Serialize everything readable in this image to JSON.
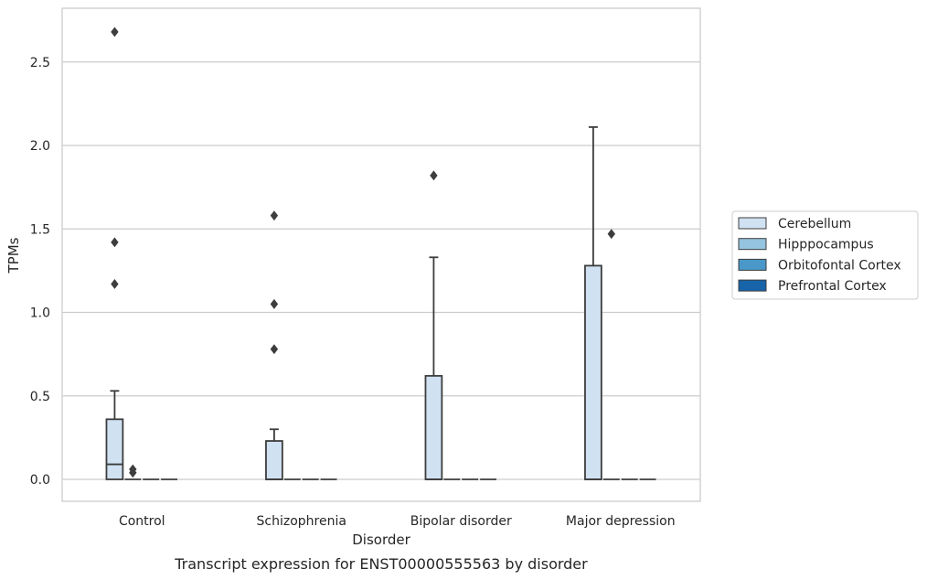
{
  "chart_data": {
    "type": "box",
    "caption": "Transcript expression for ENST00000555563 by disorder",
    "xlabel": "Disorder",
    "ylabel": "TPMs",
    "ylim": [
      -0.13,
      2.83
    ],
    "yticks": [
      0.0,
      0.5,
      1.0,
      1.5,
      2.0,
      2.5
    ],
    "ytick_labels": [
      "0.0",
      "0.5",
      "1.0",
      "1.5",
      "2.0",
      "2.5"
    ],
    "categories": [
      "Control",
      "Schizophrenia",
      "Bipolar disorder",
      "Major depression"
    ],
    "grid": "horizontal",
    "legend": {
      "placement": "right",
      "entries": [
        {
          "name": "Cerebellum",
          "color": "#d0e1f2"
        },
        {
          "name": "Hipppocampus",
          "color": "#94c4df"
        },
        {
          "name": "Orbitofontal Cortex",
          "color": "#4a98c9"
        },
        {
          "name": "Prefrontal Cortex",
          "color": "#1764ab"
        }
      ]
    },
    "series": [
      {
        "name": "Cerebellum",
        "color": "#d0e1f2",
        "boxes": [
          {
            "q1": 0.0,
            "median": 0.09,
            "q3": 0.36,
            "whislo": 0.0,
            "whishi": 0.53,
            "fliers": [
              1.17,
              1.42,
              2.68
            ]
          },
          {
            "q1": 0.0,
            "median": 0.0,
            "q3": 0.23,
            "whislo": 0.0,
            "whishi": 0.3,
            "fliers": [
              0.78,
              1.05,
              1.58
            ]
          },
          {
            "q1": 0.0,
            "median": 0.0,
            "q3": 0.62,
            "whislo": 0.0,
            "whishi": 1.33,
            "fliers": [
              1.82
            ]
          },
          {
            "q1": 0.0,
            "median": 0.0,
            "q3": 1.28,
            "whislo": 0.0,
            "whishi": 2.11,
            "fliers": []
          }
        ]
      },
      {
        "name": "Hipppocampus",
        "color": "#94c4df",
        "boxes": [
          {
            "q1": 0.0,
            "median": 0.0,
            "q3": 0.0,
            "whislo": 0.0,
            "whishi": 0.0,
            "fliers": [
              0.04,
              0.06
            ]
          },
          {
            "q1": 0.0,
            "median": 0.0,
            "q3": 0.0,
            "whislo": 0.0,
            "whishi": 0.0,
            "fliers": []
          },
          {
            "q1": 0.0,
            "median": 0.0,
            "q3": 0.0,
            "whislo": 0.0,
            "whishi": 0.0,
            "fliers": []
          },
          {
            "q1": 0.0,
            "median": 0.0,
            "q3": 0.0,
            "whislo": 0.0,
            "whishi": 0.0,
            "fliers": [
              1.47
            ]
          }
        ]
      },
      {
        "name": "Orbitofontal Cortex",
        "color": "#4a98c9",
        "boxes": [
          {
            "q1": 0.0,
            "median": 0.0,
            "q3": 0.0,
            "whislo": 0.0,
            "whishi": 0.0,
            "fliers": []
          },
          {
            "q1": 0.0,
            "median": 0.0,
            "q3": 0.0,
            "whislo": 0.0,
            "whishi": 0.0,
            "fliers": []
          },
          {
            "q1": 0.0,
            "median": 0.0,
            "q3": 0.0,
            "whislo": 0.0,
            "whishi": 0.0,
            "fliers": []
          },
          {
            "q1": 0.0,
            "median": 0.0,
            "q3": 0.0,
            "whislo": 0.0,
            "whishi": 0.0,
            "fliers": []
          }
        ]
      },
      {
        "name": "Prefrontal Cortex",
        "color": "#1764ab",
        "boxes": [
          {
            "q1": 0.0,
            "median": 0.0,
            "q3": 0.0,
            "whislo": 0.0,
            "whishi": 0.0,
            "fliers": []
          },
          {
            "q1": 0.0,
            "median": 0.0,
            "q3": 0.0,
            "whislo": 0.0,
            "whishi": 0.0,
            "fliers": []
          },
          {
            "q1": 0.0,
            "median": 0.0,
            "q3": 0.0,
            "whislo": 0.0,
            "whishi": 0.0,
            "fliers": []
          },
          {
            "q1": 0.0,
            "median": 0.0,
            "q3": 0.0,
            "whislo": 0.0,
            "whishi": 0.0,
            "fliers": []
          }
        ]
      }
    ]
  }
}
